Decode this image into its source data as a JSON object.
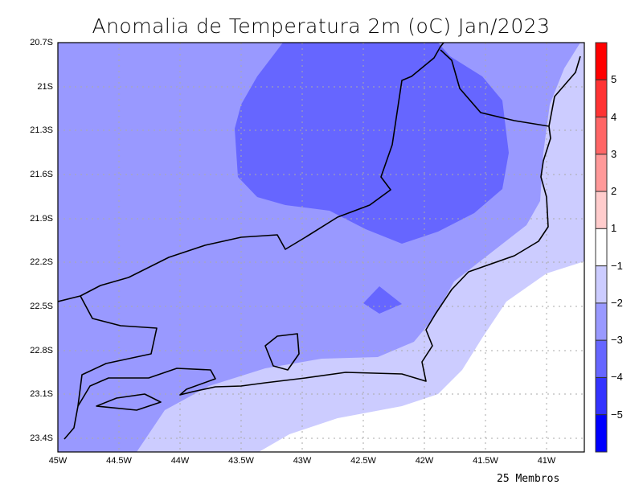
{
  "title": "Anomalia de Temperatura 2m (oC) Jan/2023",
  "footer": "25 Membros",
  "lat_labels": [
    "20.7S",
    "21S",
    "21.3S",
    "21.6S",
    "21.9S",
    "22.2S",
    "22.5S",
    "22.8S",
    "23.1S",
    "23.4S"
  ],
  "lon_labels": [
    "45W",
    "44.5W",
    "44W",
    "43.5W",
    "43W",
    "42.5W",
    "42W",
    "41.5W",
    "41W"
  ],
  "colorbar": {
    "labels": [
      "5",
      "4",
      "3",
      "2",
      "1",
      "−1",
      "−2",
      "−3",
      "−4",
      "−5"
    ],
    "colors": [
      "#ff0000",
      "#ff3333",
      "#ff6666",
      "#ff9999",
      "#ffcccc",
      "#ffffff",
      "#ccccff",
      "#9999ff",
      "#6666ff",
      "#3333ff",
      "#0000ff"
    ]
  }
}
